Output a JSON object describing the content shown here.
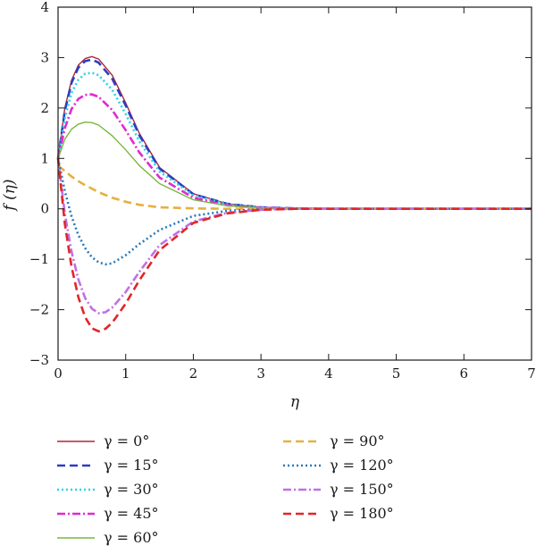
{
  "chart_data": {
    "type": "line",
    "xlabel": "η",
    "ylabel": "f (η)",
    "xlim": [
      0,
      7
    ],
    "ylim": [
      -3,
      4
    ],
    "xticks": [
      "0",
      "1",
      "2",
      "3",
      "4",
      "5",
      "6",
      "7"
    ],
    "yticks": [
      "4",
      "3",
      "2",
      "1",
      "0",
      "−1",
      "−2",
      "−3"
    ],
    "grid": false,
    "legend_position": "bottom",
    "series": [
      {
        "name": "γ = 0°",
        "color": "#b0243a",
        "dash": "solid",
        "x": [
          0,
          0.1,
          0.2,
          0.3,
          0.4,
          0.5,
          0.6,
          0.8,
          1.0,
          1.2,
          1.5,
          2.0,
          2.5,
          3.0,
          3.5,
          4.0,
          5.0,
          6.0,
          7.0
        ],
        "y": [
          1.0,
          2.0,
          2.55,
          2.85,
          2.98,
          3.02,
          2.97,
          2.65,
          2.1,
          1.5,
          0.82,
          0.3,
          0.1,
          0.03,
          0.01,
          0.0,
          0.0,
          0.0,
          0.0
        ]
      },
      {
        "name": "γ = 15°",
        "color": "#2a3fc0",
        "dash": "dash",
        "x": [
          0,
          0.1,
          0.2,
          0.3,
          0.4,
          0.5,
          0.6,
          0.8,
          1.0,
          1.2,
          1.5,
          2.0,
          2.5,
          3.0,
          3.5,
          4.0,
          5.0,
          6.0,
          7.0
        ],
        "y": [
          1.0,
          1.95,
          2.5,
          2.8,
          2.93,
          2.96,
          2.9,
          2.58,
          2.05,
          1.46,
          0.8,
          0.29,
          0.1,
          0.03,
          0.01,
          0.0,
          0.0,
          0.0,
          0.0
        ]
      },
      {
        "name": "γ = 30°",
        "color": "#2ad4e6",
        "dash": "dot",
        "x": [
          0,
          0.1,
          0.2,
          0.3,
          0.4,
          0.5,
          0.6,
          0.8,
          1.0,
          1.2,
          1.5,
          2.0,
          2.5,
          3.0,
          3.5,
          4.0,
          5.0,
          6.0,
          7.0
        ],
        "y": [
          1.0,
          1.8,
          2.3,
          2.56,
          2.68,
          2.7,
          2.65,
          2.36,
          1.88,
          1.34,
          0.74,
          0.27,
          0.09,
          0.03,
          0.01,
          0.0,
          0.0,
          0.0,
          0.0
        ]
      },
      {
        "name": "γ = 45°",
        "color": "#e02ad0",
        "dash": "dashdot",
        "x": [
          0,
          0.1,
          0.2,
          0.3,
          0.4,
          0.5,
          0.6,
          0.8,
          1.0,
          1.2,
          1.5,
          2.0,
          2.5,
          3.0,
          3.5,
          4.0,
          5.0,
          6.0,
          7.0
        ],
        "y": [
          1.0,
          1.6,
          1.98,
          2.18,
          2.26,
          2.27,
          2.22,
          1.96,
          1.56,
          1.12,
          0.62,
          0.22,
          0.07,
          0.02,
          0.01,
          0.0,
          0.0,
          0.0,
          0.0
        ]
      },
      {
        "name": "γ = 60°",
        "color": "#7ab640",
        "dash": "solid",
        "x": [
          0,
          0.1,
          0.2,
          0.3,
          0.4,
          0.5,
          0.6,
          0.8,
          1.0,
          1.2,
          1.5,
          2.0,
          2.5,
          3.0,
          3.5,
          4.0,
          5.0,
          6.0,
          7.0
        ],
        "y": [
          1.0,
          1.38,
          1.58,
          1.68,
          1.72,
          1.71,
          1.66,
          1.45,
          1.17,
          0.86,
          0.5,
          0.18,
          0.06,
          0.02,
          0.0,
          0.0,
          0.0,
          0.0,
          0.0
        ]
      },
      {
        "name": "γ = 90°",
        "color": "#e6b040",
        "dash": "dash",
        "x": [
          0,
          0.1,
          0.2,
          0.3,
          0.4,
          0.5,
          0.6,
          0.8,
          1.0,
          1.2,
          1.5,
          2.0,
          2.5,
          3.0,
          3.5,
          4.0,
          5.0,
          6.0,
          7.0
        ],
        "y": [
          0.85,
          0.75,
          0.64,
          0.55,
          0.47,
          0.4,
          0.33,
          0.22,
          0.14,
          0.08,
          0.03,
          0.01,
          0.0,
          0.0,
          0.0,
          0.0,
          0.0,
          0.0,
          0.0
        ]
      },
      {
        "name": "γ = 120°",
        "color": "#2a7ab8",
        "dash": "dot",
        "x": [
          0,
          0.1,
          0.2,
          0.3,
          0.4,
          0.5,
          0.6,
          0.7,
          0.8,
          1.0,
          1.2,
          1.5,
          2.0,
          2.5,
          3.0,
          3.5,
          4.0,
          5.0,
          6.0,
          7.0
        ],
        "y": [
          1.0,
          0.35,
          -0.15,
          -0.52,
          -0.78,
          -0.96,
          -1.06,
          -1.1,
          -1.08,
          -0.92,
          -0.7,
          -0.42,
          -0.14,
          -0.04,
          -0.01,
          0.0,
          0.0,
          0.0,
          0.0,
          0.0
        ]
      },
      {
        "name": "γ = 150°",
        "color": "#c070e6",
        "dash": "dashdot",
        "x": [
          0,
          0.1,
          0.2,
          0.3,
          0.4,
          0.5,
          0.6,
          0.7,
          0.8,
          1.0,
          1.2,
          1.5,
          2.0,
          2.5,
          3.0,
          3.5,
          4.0,
          5.0,
          6.0,
          7.0
        ],
        "y": [
          1.0,
          -0.1,
          -0.85,
          -1.4,
          -1.77,
          -1.98,
          -2.07,
          -2.05,
          -1.96,
          -1.65,
          -1.25,
          -0.72,
          -0.25,
          -0.08,
          -0.02,
          0.0,
          0.0,
          0.0,
          0.0,
          0.0
        ]
      },
      {
        "name": "γ = 180°",
        "color": "#e0262a",
        "dash": "dash",
        "x": [
          0,
          0.1,
          0.2,
          0.3,
          0.4,
          0.5,
          0.6,
          0.7,
          0.8,
          1.0,
          1.2,
          1.5,
          2.0,
          2.5,
          3.0,
          3.5,
          4.0,
          5.0,
          6.0,
          7.0
        ],
        "y": [
          1.0,
          -0.3,
          -1.15,
          -1.75,
          -2.15,
          -2.37,
          -2.43,
          -2.38,
          -2.26,
          -1.88,
          -1.42,
          -0.82,
          -0.28,
          -0.09,
          -0.02,
          0.0,
          0.0,
          0.0,
          0.0,
          0.0
        ]
      }
    ]
  }
}
